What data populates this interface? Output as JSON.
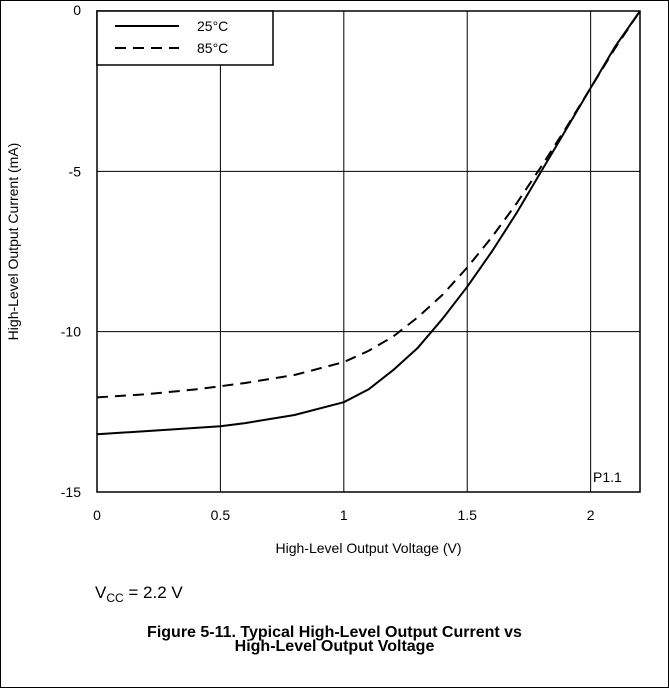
{
  "chart_data": {
    "type": "line",
    "title": "",
    "xlabel": "High-Level Output Voltage (V)",
    "ylabel": "High-Level Output Current (mA)",
    "xlim": [
      0,
      2.2
    ],
    "ylim": [
      -15,
      0
    ],
    "xticks": [
      0,
      0.5,
      1,
      1.5,
      2
    ],
    "xtick_labels": [
      "0",
      "0.5",
      "1",
      "1.5",
      "2"
    ],
    "yticks": [
      0,
      -5,
      -10,
      -15
    ],
    "ytick_labels": [
      "0",
      "-5",
      "-10",
      "-15"
    ],
    "grid": true,
    "legend_position": "top-left",
    "annotation": "P1.1",
    "series": [
      {
        "name": "25°C",
        "style": "solid",
        "x": [
          0,
          0.2,
          0.4,
          0.5,
          0.6,
          0.8,
          1.0,
          1.1,
          1.2,
          1.3,
          1.4,
          1.5,
          1.6,
          1.7,
          1.8,
          1.9,
          2.0,
          2.1,
          2.2
        ],
        "y": [
          -13.2,
          -13.1,
          -13.0,
          -12.95,
          -12.85,
          -12.6,
          -12.2,
          -11.8,
          -11.2,
          -10.5,
          -9.6,
          -8.6,
          -7.5,
          -6.3,
          -5.0,
          -3.7,
          -2.4,
          -1.1,
          0
        ]
      },
      {
        "name": "85°C",
        "style": "dashed",
        "x": [
          0,
          0.2,
          0.4,
          0.5,
          0.6,
          0.8,
          1.0,
          1.1,
          1.2,
          1.3,
          1.4,
          1.5,
          1.6,
          1.7,
          1.8,
          1.9,
          2.0,
          2.1,
          2.2
        ],
        "y": [
          -12.05,
          -11.95,
          -11.8,
          -11.7,
          -11.6,
          -11.35,
          -10.95,
          -10.6,
          -10.15,
          -9.55,
          -8.85,
          -8.0,
          -7.05,
          -6.0,
          -4.85,
          -3.65,
          -2.4,
          -1.15,
          0
        ]
      }
    ]
  },
  "footnote": {
    "prefix": "V",
    "subscript": "CC",
    "suffix": " = 2.2 V"
  },
  "caption": {
    "line1": "Figure 5-11. Typical High-Level Output Current vs",
    "line2": "High-Level Output Voltage"
  }
}
